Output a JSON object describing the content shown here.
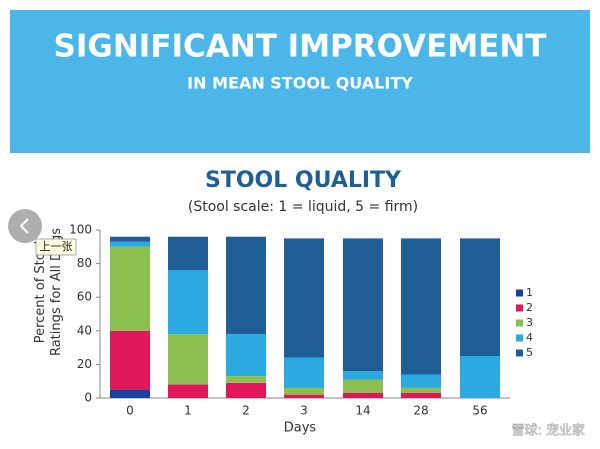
{
  "header": {
    "title": "SIGNIFICANT IMPROVEMENT",
    "subtitle": "IN MEAN STOOL QUALITY"
  },
  "chart_data": {
    "type": "bar",
    "stacked": true,
    "title": "STOOL QUALITY",
    "subtitle": "(Stool scale: 1 = liquid, 5 = firm)",
    "x_label": "Days",
    "y_label": "Percent of Stool Ratings for All Dogs",
    "categories": [
      "0",
      "1",
      "2",
      "3",
      "14",
      "28",
      "56"
    ],
    "series": [
      {
        "name": "1",
        "color": "#1b3f9e",
        "values": [
          5,
          0,
          0,
          0,
          0,
          0,
          0
        ]
      },
      {
        "name": "2",
        "color": "#e2175b",
        "values": [
          35,
          8,
          9,
          2,
          3,
          3,
          0
        ]
      },
      {
        "name": "3",
        "color": "#8bbf4f",
        "values": [
          50,
          30,
          4,
          4,
          8,
          3,
          0
        ]
      },
      {
        "name": "4",
        "color": "#2aaae0",
        "values": [
          3,
          38,
          25,
          18,
          5,
          8,
          25
        ]
      },
      {
        "name": "5",
        "color": "#1f5f96",
        "values": [
          3,
          20,
          58,
          71,
          79,
          81,
          70
        ]
      }
    ],
    "ylim": [
      0,
      100
    ],
    "yticks": [
      0,
      20,
      40,
      60,
      80,
      100
    ],
    "grid": false,
    "legend": "right"
  },
  "overlay": {
    "tooltip": "上一张",
    "watermark": "雪球: 宠业家"
  }
}
